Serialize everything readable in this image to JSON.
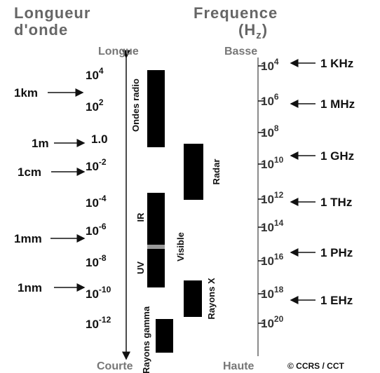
{
  "header": {
    "left_title": [
      "Longueur",
      "d'onde"
    ],
    "right_title": "Frequence",
    "right_unit": [
      "(H",
      "z",
      ")"
    ]
  },
  "left_axis": {
    "top": "Longue",
    "bottom": "Courte",
    "ticks": [
      {
        "base": "10",
        "exp": "4"
      },
      {
        "base": "10",
        "exp": "2"
      },
      {
        "base": "1.0"
      },
      {
        "base": "10",
        "exp": "-2"
      },
      {
        "base": "10",
        "exp": "-4"
      },
      {
        "base": "10",
        "exp": "-6"
      },
      {
        "base": "10",
        "exp": "-8"
      },
      {
        "base": "10",
        "exp": "-10"
      },
      {
        "base": "10",
        "exp": "-12"
      }
    ],
    "pointers": [
      "1km",
      "1m",
      "1cm",
      "1mm",
      "1nm"
    ]
  },
  "right_axis": {
    "top": "Basse",
    "bottom": "Haute",
    "ticks": [
      {
        "base": "10",
        "exp": "4"
      },
      {
        "base": "10",
        "exp": "6"
      },
      {
        "base": "10",
        "exp": "8"
      },
      {
        "base": "10",
        "exp": "10"
      },
      {
        "base": "10",
        "exp": "12"
      },
      {
        "base": "10",
        "exp": "14"
      },
      {
        "base": "10",
        "exp": "16"
      },
      {
        "base": "10",
        "exp": "18"
      },
      {
        "base": "10",
        "exp": "20"
      }
    ],
    "pointers": [
      "1 KHz",
      "1 MHz",
      "1 GHz",
      "1 THz",
      "1 PHz",
      "1 EHz"
    ]
  },
  "bands": [
    "Ondes radio",
    "Radar",
    "IR",
    "Visible",
    "UV",
    "Rayons X",
    "Rayons gamma"
  ],
  "credit": "© CCRS / CCT"
}
